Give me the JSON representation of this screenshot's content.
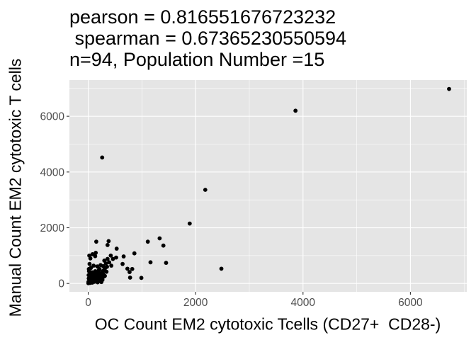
{
  "chart_data": {
    "type": "scatter",
    "title_lines": [
      "pearson = 0.816551676723232",
      " spearman = 0.67365230550594",
      "n=94, Population Number =15"
    ],
    "xlabel": "OC Count EM2 cytotoxic Tcells (CD27+  CD28-)",
    "ylabel": "Manual Count EM2 cytotoxic T cells",
    "xlim": [
      -350,
      7050
    ],
    "ylim": [
      -300,
      7300
    ],
    "x_ticks": [
      0,
      2000,
      4000,
      6000
    ],
    "y_ticks": [
      0,
      2000,
      4000,
      6000
    ],
    "x_tick_labels": [
      "0",
      "2000",
      "4000",
      "6000"
    ],
    "y_tick_labels": [
      "0",
      "2000",
      "4000",
      "6000"
    ],
    "grid": true,
    "panel_background": "#e5e5e5",
    "grid_color": "#ffffff",
    "point_color": "#000000",
    "points": [
      {
        "x": 6720,
        "y": 6980
      },
      {
        "x": 3860,
        "y": 6200
      },
      {
        "x": 260,
        "y": 4520
      },
      {
        "x": 2180,
        "y": 3360
      },
      {
        "x": 1890,
        "y": 2150
      },
      {
        "x": 2480,
        "y": 530
      },
      {
        "x": 1330,
        "y": 1620
      },
      {
        "x": 1400,
        "y": 1360
      },
      {
        "x": 1110,
        "y": 1500
      },
      {
        "x": 1450,
        "y": 740
      },
      {
        "x": 1160,
        "y": 760
      },
      {
        "x": 990,
        "y": 200
      },
      {
        "x": 860,
        "y": 1080
      },
      {
        "x": 820,
        "y": 520
      },
      {
        "x": 770,
        "y": 410
      },
      {
        "x": 780,
        "y": 210
      },
      {
        "x": 730,
        "y": 530
      },
      {
        "x": 660,
        "y": 970
      },
      {
        "x": 640,
        "y": 700
      },
      {
        "x": 530,
        "y": 1250
      },
      {
        "x": 520,
        "y": 930
      },
      {
        "x": 420,
        "y": 1000
      },
      {
        "x": 380,
        "y": 1520
      },
      {
        "x": 360,
        "y": 1380
      },
      {
        "x": 360,
        "y": 880
      },
      {
        "x": 330,
        "y": 720
      },
      {
        "x": 320,
        "y": 560
      },
      {
        "x": 300,
        "y": 820
      },
      {
        "x": 280,
        "y": 620
      },
      {
        "x": 270,
        "y": 440
      },
      {
        "x": 250,
        "y": 300
      },
      {
        "x": 240,
        "y": 160
      },
      {
        "x": 230,
        "y": 660
      },
      {
        "x": 210,
        "y": 520
      },
      {
        "x": 200,
        "y": 260
      },
      {
        "x": 190,
        "y": 380
      },
      {
        "x": 180,
        "y": 100
      },
      {
        "x": 170,
        "y": 610
      },
      {
        "x": 160,
        "y": 200
      },
      {
        "x": 150,
        "y": 1500
      },
      {
        "x": 140,
        "y": 1100
      },
      {
        "x": 130,
        "y": 980
      },
      {
        "x": 130,
        "y": 440
      },
      {
        "x": 120,
        "y": 300
      },
      {
        "x": 110,
        "y": 120
      },
      {
        "x": 100,
        "y": 640
      },
      {
        "x": 90,
        "y": 220
      },
      {
        "x": 80,
        "y": 1050
      },
      {
        "x": 70,
        "y": 400
      },
      {
        "x": 60,
        "y": 160
      },
      {
        "x": 50,
        "y": 560
      },
      {
        "x": 40,
        "y": 900
      },
      {
        "x": 30,
        "y": 320
      },
      {
        "x": 20,
        "y": 1000
      },
      {
        "x": 10,
        "y": 180
      },
      {
        "x": 5,
        "y": 60
      },
      {
        "x": 15,
        "y": 440
      },
      {
        "x": 35,
        "y": 20
      },
      {
        "x": 45,
        "y": 240
      },
      {
        "x": 55,
        "y": 90
      },
      {
        "x": 65,
        "y": 330
      },
      {
        "x": 75,
        "y": 30
      },
      {
        "x": 85,
        "y": 140
      },
      {
        "x": 95,
        "y": 380
      },
      {
        "x": 105,
        "y": 250
      },
      {
        "x": 115,
        "y": 60
      },
      {
        "x": 125,
        "y": 180
      },
      {
        "x": 135,
        "y": 340
      },
      {
        "x": 145,
        "y": 90
      },
      {
        "x": 155,
        "y": 420
      },
      {
        "x": 165,
        "y": 280
      },
      {
        "x": 175,
        "y": 40
      },
      {
        "x": 185,
        "y": 150
      },
      {
        "x": 195,
        "y": 470
      },
      {
        "x": 205,
        "y": 80
      },
      {
        "x": 215,
        "y": 210
      },
      {
        "x": 225,
        "y": 360
      },
      {
        "x": 235,
        "y": 120
      },
      {
        "x": 245,
        "y": 50
      },
      {
        "x": 255,
        "y": 230
      },
      {
        "x": 265,
        "y": 130
      },
      {
        "x": 275,
        "y": 350
      },
      {
        "x": 285,
        "y": 240
      },
      {
        "x": 295,
        "y": 480
      },
      {
        "x": 310,
        "y": 270
      },
      {
        "x": 340,
        "y": 420
      },
      {
        "x": 350,
        "y": 600
      },
      {
        "x": 390,
        "y": 760
      },
      {
        "x": 430,
        "y": 640
      },
      {
        "x": 460,
        "y": 880
      },
      {
        "x": 25,
        "y": 700
      },
      {
        "x": 12,
        "y": 520
      },
      {
        "x": 8,
        "y": 300
      },
      {
        "x": 3,
        "y": 10
      }
    ]
  }
}
